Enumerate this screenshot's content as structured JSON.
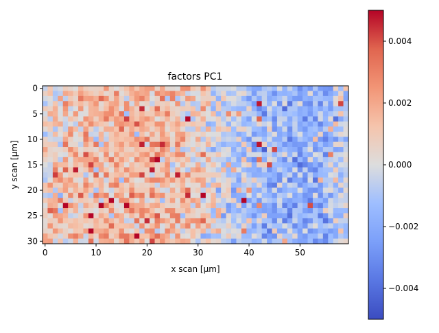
{
  "chart_data": {
    "type": "heatmap",
    "title": "factors PC1",
    "xlabel": "x scan [µm]",
    "ylabel": "y scan [µm]",
    "x_ticks": [
      0,
      10,
      20,
      30,
      40,
      50
    ],
    "y_ticks": [
      0,
      5,
      10,
      15,
      20,
      25,
      30
    ],
    "x_range": [
      -0.5,
      59.5
    ],
    "y_range": [
      -0.5,
      30.5
    ],
    "n_cols": 60,
    "n_rows": 31,
    "colormap": "coolwarm",
    "vmin": -0.005,
    "vmax": 0.005,
    "colorbar_ticks": [
      0.004,
      0.002,
      0.0,
      -0.002,
      -0.004
    ],
    "colorbar_tick_labels": [
      "0.004",
      "0.002",
      "0.000",
      "−0.002",
      "−0.004"
    ],
    "grid": false,
    "trend_anchors": {
      "x": [
        0,
        10,
        20,
        30,
        38,
        45,
        50,
        55,
        59
      ],
      "value": [
        0.0006,
        0.0014,
        0.0015,
        0.0008,
        -0.0008,
        -0.0015,
        -0.002,
        -0.0015,
        -0.0008
      ]
    },
    "notes": "Cell values reconstructed: left/center mostly positive (reds), right side mostly negative (blues), with noisy per-pixel variation."
  }
}
